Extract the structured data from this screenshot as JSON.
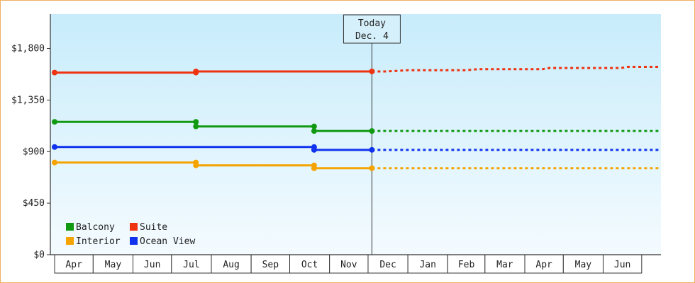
{
  "chart_data": {
    "type": "line",
    "title": "",
    "xlabel": "",
    "ylabel": "",
    "ylim": [
      0,
      2100
    ],
    "y_ticks": [
      {
        "value": 0,
        "label": "$0"
      },
      {
        "value": 450,
        "label": "$450"
      },
      {
        "value": 900,
        "label": "$900"
      },
      {
        "value": 1350,
        "label": "$1,350"
      },
      {
        "value": 1800,
        "label": "$1,800"
      }
    ],
    "x_start": "2023-04-01",
    "x_end": "2024-07-16",
    "months": [
      {
        "label": "Apr",
        "start": "2023-04-01",
        "end": "2023-05-01"
      },
      {
        "label": "May",
        "start": "2023-05-01",
        "end": "2023-06-01"
      },
      {
        "label": "Jun",
        "start": "2023-06-01",
        "end": "2023-07-01"
      },
      {
        "label": "Jul",
        "start": "2023-07-01",
        "end": "2023-08-01"
      },
      {
        "label": "Aug",
        "start": "2023-08-01",
        "end": "2023-09-01"
      },
      {
        "label": "Sep",
        "start": "2023-09-01",
        "end": "2023-10-01"
      },
      {
        "label": "Oct",
        "start": "2023-10-01",
        "end": "2023-11-01"
      },
      {
        "label": "Nov",
        "start": "2023-11-01",
        "end": "2023-12-01"
      },
      {
        "label": "Dec",
        "start": "2023-12-01",
        "end": "2024-01-01"
      },
      {
        "label": "Jan",
        "start": "2024-01-01",
        "end": "2024-02-01"
      },
      {
        "label": "Feb",
        "start": "2024-02-01",
        "end": "2024-03-01"
      },
      {
        "label": "Mar",
        "start": "2024-03-01",
        "end": "2024-04-01"
      },
      {
        "label": "Apr",
        "start": "2024-04-01",
        "end": "2024-05-01"
      },
      {
        "label": "May",
        "start": "2024-05-01",
        "end": "2024-06-01"
      },
      {
        "label": "Jun",
        "start": "2024-06-01",
        "end": "2024-07-01"
      }
    ],
    "today": {
      "date": "2023-12-04",
      "line1": "Today",
      "line2": "Dec. 4"
    },
    "legend": {
      "placement": "bottom-left"
    },
    "series": [
      {
        "name": "Suite",
        "color": "#ee3311",
        "points": [
          [
            "2023-04-01",
            1590
          ],
          [
            "2023-07-20",
            1590
          ],
          [
            "2023-07-20",
            1600
          ],
          [
            "2023-12-04",
            1600
          ]
        ],
        "markers": [
          "2023-04-01",
          "2023-07-20",
          "2023-12-04"
        ],
        "forecast": [
          [
            "2023-12-04",
            1600
          ],
          [
            "2023-12-15",
            1600
          ],
          [
            "2024-01-01",
            1610
          ],
          [
            "2024-02-15",
            1610
          ],
          [
            "2024-02-25",
            1620
          ],
          [
            "2024-04-15",
            1620
          ],
          [
            "2024-04-20",
            1630
          ],
          [
            "2024-06-15",
            1630
          ],
          [
            "2024-06-20",
            1640
          ],
          [
            "2024-07-16",
            1640
          ]
        ]
      },
      {
        "name": "Balcony",
        "color": "#119911",
        "points": [
          [
            "2023-04-01",
            1160
          ],
          [
            "2023-07-20",
            1160
          ],
          [
            "2023-07-20",
            1120
          ],
          [
            "2023-10-20",
            1120
          ],
          [
            "2023-10-20",
            1080
          ],
          [
            "2023-12-04",
            1080
          ]
        ],
        "markers": [
          "2023-04-01",
          "2023-07-20",
          "2023-10-20",
          "2023-12-04"
        ],
        "forecast": [
          [
            "2023-12-04",
            1080
          ],
          [
            "2024-07-16",
            1080
          ]
        ]
      },
      {
        "name": "Ocean View",
        "color": "#1133ee",
        "points": [
          [
            "2023-04-01",
            940
          ],
          [
            "2023-10-20",
            940
          ],
          [
            "2023-10-20",
            915
          ],
          [
            "2023-12-04",
            915
          ]
        ],
        "markers": [
          "2023-04-01",
          "2023-10-20",
          "2023-12-04"
        ],
        "forecast": [
          [
            "2023-12-04",
            915
          ],
          [
            "2024-07-16",
            915
          ]
        ]
      },
      {
        "name": "Interior",
        "color": "#f5a300",
        "points": [
          [
            "2023-04-01",
            805
          ],
          [
            "2023-07-20",
            805
          ],
          [
            "2023-07-20",
            780
          ],
          [
            "2023-10-20",
            780
          ],
          [
            "2023-10-20",
            755
          ],
          [
            "2023-12-04",
            755
          ]
        ],
        "markers": [
          "2023-04-01",
          "2023-07-20",
          "2023-10-20",
          "2023-12-04"
        ],
        "forecast": [
          [
            "2023-12-04",
            755
          ],
          [
            "2024-07-16",
            755
          ]
        ]
      }
    ],
    "legend_order": [
      "Balcony",
      "Suite",
      "Interior",
      "Ocean View"
    ]
  },
  "colors": {
    "plot_top": "#c8ecfb",
    "plot_bottom": "#f4fbff",
    "frame_border": "#f0b060",
    "axis": "#333333"
  }
}
